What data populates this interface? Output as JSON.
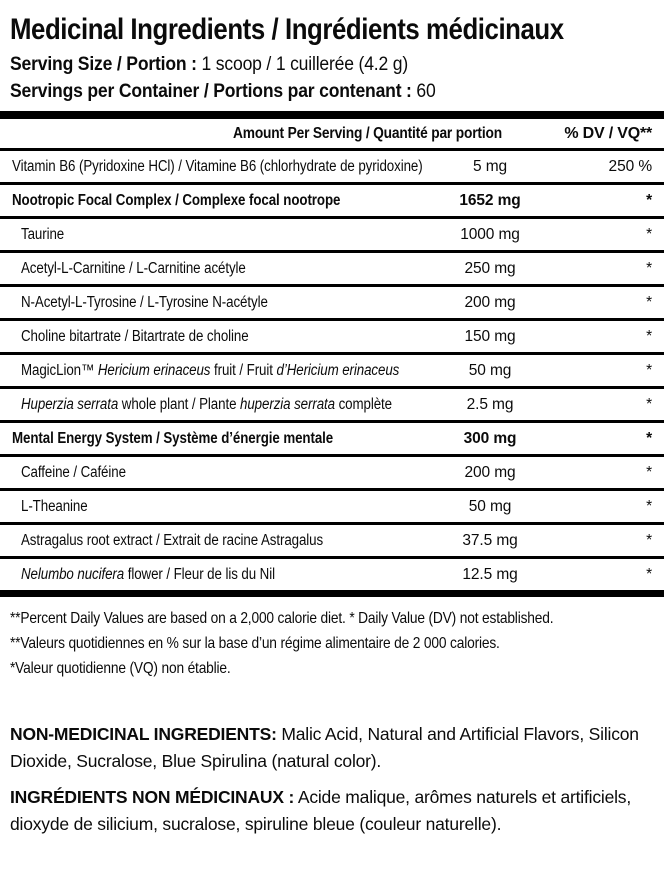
{
  "header": {
    "title": "Medicinal Ingredients / Ingrédients médicinaux",
    "serving_size_label": "Serving Size / Portion :",
    "serving_size_value": "1 scoop / 1 cuillerée (4.2 g)",
    "servings_label": "Servings per Container / Portions par contenant :",
    "servings_value": "60"
  },
  "table": {
    "amount_header": "Amount Per Serving / Quantité par portion",
    "dv_header": "% DV / VQ**",
    "rows": [
      {
        "name": [
          {
            "t": "Vitamin B6 (Pyridoxine HCl) / Vitamine B6 (chlorhydrate de pyridoxine)"
          }
        ],
        "amount": "5 mg",
        "dv": "250 %"
      },
      {
        "name": [
          {
            "t": "Nootropic Focal Complex / Complexe focal nootrope"
          }
        ],
        "amount": "1652 mg",
        "dv": "*"
      },
      {
        "name": [
          {
            "t": "Taurine"
          }
        ],
        "amount": "1000 mg",
        "dv": "*"
      },
      {
        "name": [
          {
            "t": "Acetyl-L-Carnitine / L-Carnitine acétyle"
          }
        ],
        "amount": "250 mg",
        "dv": "*"
      },
      {
        "name": [
          {
            "t": "N-Acetyl-L-Tyrosine / L-Tyrosine N-acétyle"
          }
        ],
        "amount": "200 mg",
        "dv": "*"
      },
      {
        "name": [
          {
            "t": "Choline bitartrate / Bitartrate de choline"
          }
        ],
        "amount": "150 mg",
        "dv": "*"
      },
      {
        "name": [
          {
            "t": "MagicLion™ "
          },
          {
            "t": "Hericium erinaceus",
            "i": true
          },
          {
            "t": " fruit / Fruit "
          },
          {
            "t": "d’Hericium erinaceus",
            "i": true
          }
        ],
        "amount": "50 mg",
        "dv": "*"
      },
      {
        "name": [
          {
            "t": "Huperzia serrata",
            "i": true
          },
          {
            "t": " whole plant / Plante "
          },
          {
            "t": "huperzia serrata",
            "i": true
          },
          {
            "t": " complète"
          }
        ],
        "amount": "2.5 mg",
        "dv": "*"
      },
      {
        "name": [
          {
            "t": "Mental Energy System / Système d’énergie mentale"
          }
        ],
        "amount": "300 mg",
        "dv": "*"
      },
      {
        "name": [
          {
            "t": "Caffeine / Caféine"
          }
        ],
        "amount": "200 mg",
        "dv": "*"
      },
      {
        "name": [
          {
            "t": "L-Theanine"
          }
        ],
        "amount": "50 mg",
        "dv": "*"
      },
      {
        "name": [
          {
            "t": "Astragalus root extract / Extrait de racine Astragalus"
          }
        ],
        "amount": "37.5 mg",
        "dv": "*"
      },
      {
        "name": [
          {
            "t": "Nelumbo nucifera",
            "i": true
          },
          {
            "t": " flower / Fleur de lis du Nil"
          }
        ],
        "amount": "12.5 mg",
        "dv": "*"
      }
    ]
  },
  "footnotes": {
    "en": "**Percent Daily Values are based on a 2,000 calorie diet. * Daily Value (DV) not established.",
    "fr_line1": "**Valeurs quotidiennes en % sur la base d’un régime alimentaire de 2 000 calories.",
    "fr_line2": "*Valeur quotidienne (VQ) non établie."
  },
  "non_medicinal": {
    "en_label": "NON-MEDICINAL INGREDIENTS:",
    "en_text": "Malic Acid, Natural and Artificial Flavors, Silicon\nDioxide, Sucralose, Blue Spirulina (natural color).",
    "fr_label": "INGRÉDIENTS NON MÉDICINAUX :",
    "fr_text": "Acide malique, arômes naturels et artificiels,\ndioxyde de silicium, sucralose, spiruline bleue (couleur naturelle)."
  },
  "colors": {
    "text": "#0b0b0b",
    "background": "#ffffff",
    "rule": "#000000"
  }
}
